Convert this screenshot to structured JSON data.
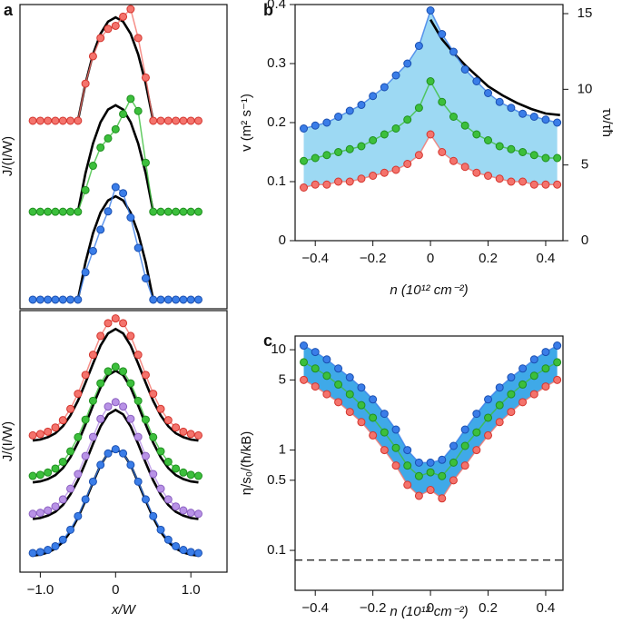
{
  "chart_data": [
    {
      "type": "line",
      "panel_label": "a",
      "ylabel": "J/(I/W)",
      "xlim": [
        -1.27,
        1.48
      ],
      "ylim": [
        0,
        10
      ],
      "x": [
        -1.1,
        -1.0,
        -0.9,
        -0.8,
        -0.7,
        -0.6,
        -0.5,
        -0.4,
        -0.3,
        -0.2,
        -0.1,
        0,
        0.1,
        0.2,
        0.3,
        0.4,
        0.5,
        0.6,
        0.7,
        0.8,
        0.9,
        1.0,
        1.1
      ],
      "series": [
        {
          "color": "#000000",
          "mode": "line",
          "x": [
            -0.5,
            -0.4,
            -0.3,
            -0.2,
            -0.1,
            0,
            0.1,
            0.2,
            0.3,
            0.4,
            0.5
          ],
          "values": [
            6.18,
            7.4,
            8.36,
            9.04,
            9.44,
            9.58,
            9.44,
            9.04,
            8.36,
            7.4,
            6.18
          ]
        },
        {
          "color": "#000000",
          "mode": "line",
          "x": [
            -0.5,
            -0.4,
            -0.3,
            -0.2,
            -0.1,
            0,
            0.1,
            0.2,
            0.3,
            0.4,
            0.5
          ],
          "values": [
            3.19,
            4.45,
            5.43,
            6.13,
            6.55,
            6.69,
            6.55,
            6.13,
            5.43,
            4.45,
            3.19
          ]
        },
        {
          "color": "#000000",
          "mode": "line",
          "x": [
            -0.5,
            -0.4,
            -0.3,
            -0.2,
            -0.1,
            0,
            0.1,
            0.2,
            0.3,
            0.4,
            0.5
          ],
          "values": [
            0.3,
            1.52,
            2.48,
            3.16,
            3.56,
            3.7,
            3.56,
            3.16,
            2.48,
            1.52,
            0.3
          ]
        },
        {
          "color": "#f4736c",
          "edgecolor": "#d4352e",
          "mode": "markers",
          "values": [
            6.18,
            6.18,
            6.18,
            6.18,
            6.18,
            6.18,
            6.18,
            7.4,
            8.3,
            8.9,
            9.2,
            9.3,
            9.6,
            9.85,
            8.9,
            7.6,
            6.18,
            6.18,
            6.18,
            6.18,
            6.18,
            6.18,
            6.18
          ]
        },
        {
          "color": "#3cbf3c",
          "edgecolor": "#1f8f1f",
          "mode": "markers",
          "values": [
            3.19,
            3.19,
            3.19,
            3.19,
            3.19,
            3.19,
            3.19,
            3.9,
            4.7,
            5.3,
            5.6,
            5.9,
            6.4,
            6.9,
            6.5,
            4.8,
            3.19,
            3.19,
            3.19,
            3.19,
            3.19,
            3.19,
            3.19
          ]
        },
        {
          "color": "#3a7de8",
          "edgecolor": "#1a4fb0",
          "mode": "markers",
          "values": [
            0.3,
            0.3,
            0.3,
            0.3,
            0.3,
            0.3,
            0.3,
            1.2,
            1.9,
            2.6,
            3.2,
            4.0,
            3.8,
            3.0,
            2.0,
            1.0,
            0.3,
            0.3,
            0.3,
            0.3,
            0.3,
            0.3,
            0.3
          ]
        }
      ]
    },
    {
      "type": "line",
      "ylabel": "J/(I/W)",
      "xlabel": "x/W",
      "xlim": [
        -1.27,
        1.48
      ],
      "ylim": [
        0,
        10
      ],
      "xticks": [
        {
          "value": -1,
          "label": "−1.0"
        },
        0,
        {
          "value": 1,
          "label": "1.0"
        }
      ],
      "x": [
        -1.1,
        -1.0,
        -0.9,
        -0.8,
        -0.7,
        -0.6,
        -0.5,
        -0.4,
        -0.3,
        -0.2,
        -0.1,
        0,
        0.1,
        0.2,
        0.3,
        0.4,
        0.5,
        0.6,
        0.7,
        0.8,
        0.9,
        1.0,
        1.1
      ],
      "series": [
        {
          "color": "#000000",
          "mode": "line",
          "values": [
            5.03,
            5.07,
            5.16,
            5.31,
            5.58,
            5.99,
            6.55,
            7.24,
            7.97,
            8.66,
            9.13,
            9.3,
            9.13,
            8.66,
            7.97,
            7.24,
            6.55,
            5.99,
            5.58,
            5.31,
            5.16,
            5.07,
            5.03
          ]
        },
        {
          "color": "#000000",
          "mode": "line",
          "values": [
            3.43,
            3.47,
            3.56,
            3.71,
            3.98,
            4.39,
            4.95,
            5.64,
            6.37,
            7.06,
            7.53,
            7.7,
            7.53,
            7.06,
            6.37,
            5.64,
            4.95,
            4.39,
            3.98,
            3.71,
            3.56,
            3.47,
            3.43
          ]
        },
        {
          "color": "#000000",
          "mode": "line",
          "values": [
            2.03,
            2.07,
            2.16,
            2.31,
            2.57,
            2.97,
            3.51,
            4.18,
            4.9,
            5.57,
            6.03,
            6.2,
            6.03,
            5.57,
            4.9,
            4.18,
            3.51,
            2.97,
            2.57,
            2.31,
            2.16,
            2.07,
            2.03
          ]
        },
        {
          "color": "#000000",
          "mode": "line",
          "values": [
            0.63,
            0.67,
            0.75,
            0.9,
            1.15,
            1.54,
            2.08,
            2.73,
            3.43,
            4.09,
            4.54,
            4.7,
            4.54,
            4.09,
            3.43,
            2.73,
            2.08,
            1.54,
            1.15,
            0.9,
            0.75,
            0.67,
            0.63
          ]
        },
        {
          "color": "#f4736c",
          "edgecolor": "#d4352e",
          "mode": "markers",
          "values": [
            5.23,
            5.28,
            5.37,
            5.53,
            5.81,
            6.24,
            6.82,
            7.54,
            8.31,
            9.03,
            9.52,
            9.7,
            9.52,
            9.03,
            8.31,
            7.54,
            6.82,
            6.24,
            5.81,
            5.53,
            5.37,
            5.28,
            5.23
          ]
        },
        {
          "color": "#3cbf3c",
          "edgecolor": "#1f8f1f",
          "mode": "markers",
          "values": [
            3.68,
            3.72,
            3.81,
            3.96,
            4.22,
            4.62,
            5.16,
            5.83,
            6.55,
            7.22,
            7.68,
            7.85,
            7.68,
            7.22,
            6.55,
            5.83,
            5.16,
            4.62,
            4.22,
            3.96,
            3.81,
            3.72,
            3.68
          ]
        },
        {
          "color": "#b892e6",
          "edgecolor": "#8a5fc0",
          "mode": "markers",
          "values": [
            2.23,
            2.27,
            2.36,
            2.51,
            2.78,
            3.19,
            3.75,
            4.44,
            5.17,
            5.86,
            6.33,
            6.5,
            6.33,
            5.86,
            5.17,
            4.44,
            3.75,
            3.19,
            2.78,
            2.51,
            2.36,
            2.27,
            2.23
          ]
        },
        {
          "color": "#3a7de8",
          "edgecolor": "#1a4fb0",
          "mode": "markers",
          "values": [
            0.73,
            0.77,
            0.85,
            0.99,
            1.24,
            1.62,
            2.14,
            2.78,
            3.46,
            4.1,
            4.54,
            4.7,
            4.54,
            4.1,
            3.46,
            2.78,
            2.14,
            1.62,
            1.24,
            0.99,
            0.85,
            0.77,
            0.73
          ]
        }
      ]
    },
    {
      "type": "line",
      "panel_label": "b",
      "ylabel": "v (m² s⁻¹)",
      "y2label": "τν/τħ",
      "xlabel": "n (10¹² cm⁻²)",
      "xlim": [
        -0.47,
        0.46
      ],
      "ylim": [
        0,
        0.4
      ],
      "y2lim": [
        0,
        15.6
      ],
      "band_color": "#9dd9f3",
      "xticks": [
        {
          "value": -0.4,
          "label": "−0.4"
        },
        {
          "value": -0.2,
          "label": "−0.2"
        },
        0,
        0.2,
        0.4
      ],
      "yticks": [
        0,
        0.1,
        0.2,
        0.3,
        0.4
      ],
      "y2ticks": [
        0,
        5,
        10,
        15
      ],
      "x": [
        -0.44,
        -0.4,
        -0.36,
        -0.32,
        -0.28,
        -0.24,
        -0.2,
        -0.16,
        -0.12,
        -0.08,
        -0.04,
        0,
        0.04,
        0.08,
        0.12,
        0.16,
        0.2,
        0.24,
        0.28,
        0.32,
        0.36,
        0.4,
        0.44
      ],
      "series": [
        {
          "color": "#f4736c",
          "edgecolor": "#d4352e",
          "mode": "markers",
          "values": [
            0.09,
            0.095,
            0.095,
            0.1,
            0.1,
            0.105,
            0.11,
            0.115,
            0.12,
            0.13,
            0.145,
            0.18,
            0.15,
            0.135,
            0.125,
            0.115,
            0.11,
            0.105,
            0.1,
            0.1,
            0.095,
            0.095,
            0.095
          ]
        },
        {
          "color": "#3cbf3c",
          "edgecolor": "#1f8f1f",
          "mode": "markers",
          "values": [
            0.135,
            0.14,
            0.145,
            0.15,
            0.155,
            0.16,
            0.17,
            0.18,
            0.19,
            0.205,
            0.225,
            0.27,
            0.235,
            0.21,
            0.195,
            0.18,
            0.17,
            0.16,
            0.155,
            0.15,
            0.145,
            0.14,
            0.14
          ]
        },
        {
          "color": "#3a7de8",
          "edgecolor": "#1a4fb0",
          "mode": "markers",
          "values": [
            0.19,
            0.195,
            0.2,
            0.21,
            0.22,
            0.23,
            0.245,
            0.26,
            0.28,
            0.3,
            0.33,
            0.39,
            0.35,
            0.32,
            0.29,
            0.27,
            0.25,
            0.235,
            0.225,
            0.215,
            0.21,
            0.205,
            0.2
          ]
        },
        {
          "color": "#000000",
          "mode": "line",
          "axis": "y2",
          "x": [
            0,
            0.04,
            0.08,
            0.12,
            0.16,
            0.2,
            0.25,
            0.3,
            0.35,
            0.4,
            0.45
          ],
          "values": [
            14.6,
            13.3,
            12.4,
            11.6,
            10.9,
            10.2,
            9.6,
            9.1,
            8.7,
            8.4,
            8.3
          ]
        }
      ]
    },
    {
      "type": "line",
      "panel_label": "c",
      "ylabel": "η/s₀/(ħ/kB)",
      "xlabel": "n (10¹² cm⁻²)",
      "xlim": [
        -0.47,
        0.46
      ],
      "ylim": [
        0.04,
        13.7
      ],
      "yscale": "log",
      "band_color": "#3fa9e8",
      "reference_line": 0.08,
      "xticks": [
        {
          "value": -0.4,
          "label": "−0.4"
        },
        {
          "value": -0.2,
          "label": "−0.2"
        },
        0,
        0.2,
        0.4
      ],
      "yticks": [
        0.1,
        0.5,
        1,
        5,
        10
      ],
      "x": [
        -0.44,
        -0.4,
        -0.36,
        -0.32,
        -0.28,
        -0.24,
        -0.2,
        -0.16,
        -0.12,
        -0.08,
        -0.04,
        0,
        0.04,
        0.08,
        0.12,
        0.16,
        0.2,
        0.24,
        0.28,
        0.32,
        0.36,
        0.4,
        0.44
      ],
      "series": [
        {
          "color": "#f4736c",
          "edgecolor": "#d4352e",
          "mode": "markers",
          "values": [
            5,
            4.3,
            3.6,
            3,
            2.4,
            1.9,
            1.4,
            1,
            0.7,
            0.45,
            0.35,
            0.4,
            0.33,
            0.5,
            0.7,
            1,
            1.4,
            1.9,
            2.4,
            3,
            3.6,
            4.3,
            5
          ]
        },
        {
          "color": "#3cbf3c",
          "edgecolor": "#1f8f1f",
          "mode": "markers",
          "values": [
            7.5,
            6.5,
            5.5,
            4.5,
            3.6,
            2.8,
            2.1,
            1.5,
            1.05,
            0.7,
            0.55,
            0.6,
            0.55,
            0.75,
            1.1,
            1.5,
            2.1,
            2.8,
            3.6,
            4.5,
            5.5,
            6.5,
            7.5
          ]
        },
        {
          "color": "#3a7de8",
          "edgecolor": "#1a4fb0",
          "mode": "markers",
          "values": [
            11,
            9.5,
            8,
            6.5,
            5.3,
            4.2,
            3.2,
            2.3,
            1.6,
            1.0,
            0.75,
            0.75,
            0.8,
            1.1,
            1.6,
            2.3,
            3.2,
            4.2,
            5.3,
            6.5,
            8,
            9.5,
            11
          ]
        }
      ]
    }
  ]
}
